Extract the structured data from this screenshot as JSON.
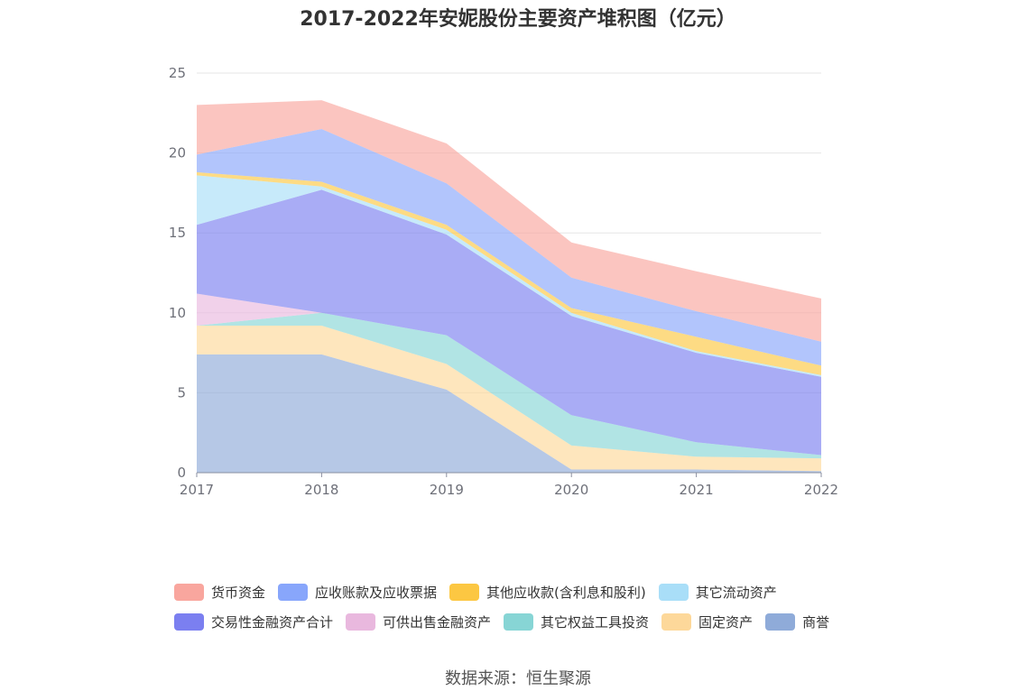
{
  "title": "2017-2022年安妮股份主要资产堆积图（亿元）",
  "source": "数据来源：恒生聚源",
  "chart_data": {
    "type": "area",
    "stacked": true,
    "categories": [
      "2017",
      "2018",
      "2019",
      "2020",
      "2021",
      "2022"
    ],
    "ylim": [
      0,
      25
    ],
    "yticks": [
      0,
      5,
      10,
      15,
      20,
      25
    ],
    "grid": true,
    "legend_position": "bottom",
    "series": [
      {
        "name": "商誉",
        "color": "#8fabd9",
        "values": [
          7.4,
          7.4,
          5.2,
          0.2,
          0.2,
          0.1
        ]
      },
      {
        "name": "固定资产",
        "color": "#fdd89a",
        "values": [
          1.8,
          1.8,
          1.6,
          1.5,
          0.8,
          0.8
        ]
      },
      {
        "name": "其它权益工具投资",
        "color": "#87d5d5",
        "values": [
          0,
          0.8,
          1.8,
          1.9,
          0.9,
          0.2
        ]
      },
      {
        "name": "可供出售金融资产",
        "color": "#e9b8de",
        "values": [
          2.0,
          0,
          0,
          0,
          0,
          0
        ]
      },
      {
        "name": "交易性金融资产合计",
        "color": "#7b7ff0",
        "values": [
          4.3,
          7.7,
          6.3,
          6.2,
          5.6,
          4.9
        ]
      },
      {
        "name": "其它流动资产",
        "color": "#a9def8",
        "values": [
          3.1,
          0.2,
          0.3,
          0.2,
          0.1,
          0.1
        ]
      },
      {
        "name": "其他应收款(含利息和股利)",
        "color": "#fcc742",
        "values": [
          0.2,
          0.3,
          0.3,
          0.3,
          0.9,
          0.6
        ]
      },
      {
        "name": "应收账款及应收票据",
        "color": "#88a6fb",
        "values": [
          1.1,
          3.3,
          2.6,
          1.9,
          1.6,
          1.5
        ]
      },
      {
        "name": "货币资金",
        "color": "#f9a69e",
        "values": [
          3.1,
          1.8,
          2.5,
          2.2,
          2.5,
          2.7
        ]
      }
    ]
  },
  "legend": {
    "rows": [
      [
        {
          "label": "货币资金",
          "color": "#f9a69e"
        },
        {
          "label": "应收账款及应收票据",
          "color": "#88a6fb"
        },
        {
          "label": "其他应收款(含利息和股利)",
          "color": "#fcc742"
        },
        {
          "label": "其它流动资产",
          "color": "#a9def8"
        }
      ],
      [
        {
          "label": "交易性金融资产合计",
          "color": "#7b7ff0"
        },
        {
          "label": "可供出售金融资产",
          "color": "#e9b8de"
        },
        {
          "label": "其它权益工具投资",
          "color": "#87d5d5"
        },
        {
          "label": "固定资产",
          "color": "#fdd89a"
        },
        {
          "label": "商誉",
          "color": "#8fabd9"
        }
      ]
    ]
  }
}
